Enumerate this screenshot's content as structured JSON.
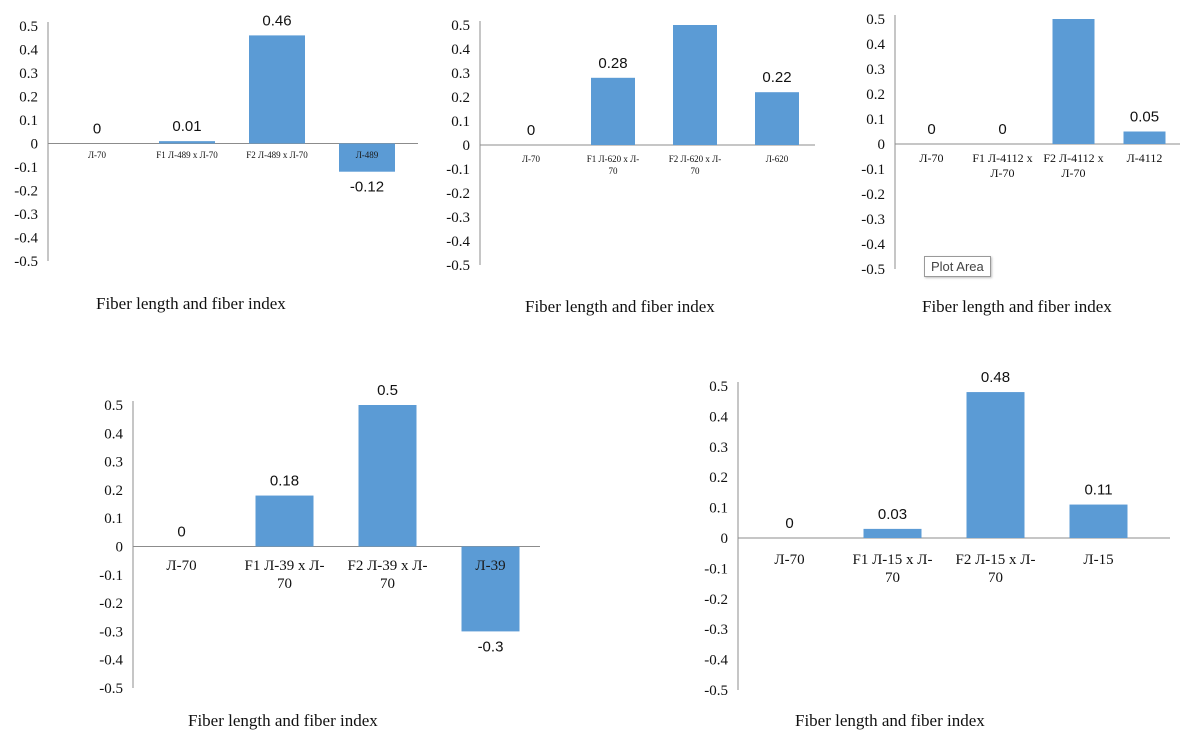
{
  "colors": {
    "bar": "#5b9bd5",
    "axis": "#8c8c8c",
    "text": "#111111"
  },
  "tooltip": {
    "label": "Plot Area"
  },
  "chart_data": [
    {
      "type": "bar",
      "caption": "Fiber length and fiber index",
      "categories": [
        [
          "Л-70"
        ],
        [
          "F1 Л-489 x Л-70"
        ],
        [
          "F2 Л-489 x Л-70"
        ],
        [
          "Л-489"
        ]
      ],
      "values": [
        0,
        0.01,
        0.46,
        -0.12
      ],
      "data_labels": [
        "0",
        "0.01",
        "0.46",
        "-0.12"
      ],
      "ylim": [
        -0.5,
        0.5
      ],
      "ticks": [
        "0.5",
        "0.4",
        "0.3",
        "0.2",
        "0.1",
        "0",
        "-0.1",
        "-0.2",
        "-0.3",
        "-0.4",
        "-0.5"
      ],
      "grid": false,
      "legend": "none"
    },
    {
      "type": "bar",
      "caption": "Fiber length and fiber index",
      "categories": [
        [
          "Л-70"
        ],
        [
          "F1 Л-620 x Л-",
          "70"
        ],
        [
          "F2 Л-620 x Л-",
          "70"
        ],
        [
          "Л-620"
        ]
      ],
      "values": [
        0,
        0.28,
        0.5,
        0.22
      ],
      "data_labels": [
        "0",
        "0.28",
        "",
        "0.22"
      ],
      "ylim": [
        -0.5,
        0.5
      ],
      "ticks": [
        "0.5",
        "0.4",
        "0.3",
        "0.2",
        "0.1",
        "0",
        "-0.1",
        "-0.2",
        "-0.3",
        "-0.4",
        "-0.5"
      ],
      "grid": false,
      "legend": "none"
    },
    {
      "type": "bar",
      "caption": "Fiber length and fiber index",
      "categories": [
        [
          "Л-70"
        ],
        [
          "F1 Л-4112 x",
          "Л-70"
        ],
        [
          "F2 Л-4112 x",
          "Л-70"
        ],
        [
          "Л-4112"
        ]
      ],
      "values": [
        0,
        0,
        0.5,
        0.05
      ],
      "data_labels": [
        "0",
        "0",
        "",
        "0.05"
      ],
      "ylim": [
        -0.5,
        0.5
      ],
      "ticks": [
        "0.5",
        "0.4",
        "0.3",
        "0.2",
        "0.1",
        "0",
        "-0.1",
        "-0.2",
        "-0.3",
        "-0.4",
        "-0.5"
      ],
      "grid": false,
      "legend": "none"
    },
    {
      "type": "bar",
      "caption": "Fiber length and fiber index",
      "categories": [
        [
          "Л-70"
        ],
        [
          "F1 Л-39 x Л-",
          "70"
        ],
        [
          "F2 Л-39 x Л-",
          "70"
        ],
        [
          "Л-39"
        ]
      ],
      "values": [
        0,
        0.18,
        0.5,
        -0.3
      ],
      "data_labels": [
        "0",
        "0.18",
        "0.5",
        "-0.3"
      ],
      "ylim": [
        -0.5,
        0.5
      ],
      "ticks": [
        "0.5",
        "0.4",
        "0.3",
        "0.2",
        "0.1",
        "0",
        "-0.1",
        "-0.2",
        "-0.3",
        "-0.4",
        "-0.5"
      ],
      "grid": false,
      "legend": "none"
    },
    {
      "type": "bar",
      "caption": "Fiber length and fiber index",
      "categories": [
        [
          "Л-70"
        ],
        [
          "F1 Л-15 x Л-",
          "70"
        ],
        [
          "F2 Л-15 x Л-",
          "70"
        ],
        [
          "Л-15"
        ]
      ],
      "values": [
        0,
        0.03,
        0.48,
        0.11
      ],
      "data_labels": [
        "0",
        "0.03",
        "0.48",
        "0.11"
      ],
      "ylim": [
        -0.5,
        0.5
      ],
      "ticks": [
        "0.5",
        "0.4",
        "0.3",
        "0.2",
        "0.1",
        "0",
        "-0.1",
        "-0.2",
        "-0.3",
        "-0.4",
        "-0.5"
      ],
      "grid": false,
      "legend": "none"
    }
  ]
}
